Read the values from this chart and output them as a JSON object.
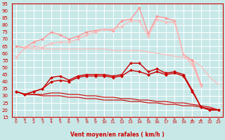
{
  "bg_color": "#c8e8e8",
  "grid_color": "#ffffff",
  "xlabel": "Vent moyen/en rafales ( km/h )",
  "ylabel_ticks": [
    15,
    20,
    25,
    30,
    35,
    40,
    45,
    50,
    55,
    60,
    65,
    70,
    75,
    80,
    85,
    90,
    95
  ],
  "x_ticks": [
    0,
    1,
    2,
    3,
    4,
    5,
    6,
    7,
    8,
    9,
    10,
    11,
    12,
    13,
    14,
    15,
    16,
    17,
    18,
    19,
    20,
    21,
    22,
    23
  ],
  "lines": [
    {
      "color": "#ffbbbb",
      "linewidth": 0.9,
      "marker": null,
      "markersize": 0,
      "y": [
        65,
        64,
        63,
        63,
        63,
        63,
        63,
        63,
        63,
        63,
        63,
        62,
        62,
        62,
        62,
        61,
        60,
        59,
        58,
        57,
        55,
        51,
        43,
        38
      ]
    },
    {
      "color": "#ff9999",
      "linewidth": 1.0,
      "marker": "D",
      "markersize": 2.0,
      "y": [
        65,
        64,
        68,
        70,
        75,
        73,
        70,
        72,
        75,
        76,
        77,
        76,
        83,
        84,
        92,
        74,
        86,
        85,
        83,
        59,
        55,
        38,
        null,
        null
      ]
    },
    {
      "color": "#ffbbbb",
      "linewidth": 1.0,
      "marker": "D",
      "markersize": 2.0,
      "y": [
        57,
        64,
        65,
        64,
        67,
        68,
        68,
        70,
        73,
        75,
        77,
        77,
        79,
        83,
        83,
        72,
        84,
        82,
        82,
        59,
        52,
        37,
        null,
        null
      ]
    },
    {
      "color": "#cc0000",
      "linewidth": 1.0,
      "marker": "D",
      "markersize": 2.0,
      "y": [
        33,
        31,
        33,
        35,
        43,
        44,
        41,
        44,
        45,
        45,
        45,
        44,
        45,
        53,
        53,
        47,
        49,
        46,
        47,
        45,
        34,
        22,
        20,
        20
      ]
    },
    {
      "color": "#cc0000",
      "linewidth": 1.0,
      "marker": "D",
      "markersize": 2.0,
      "y": [
        33,
        31,
        33,
        35,
        40,
        41,
        40,
        43,
        44,
        44,
        44,
        43,
        44,
        48,
        47,
        45,
        47,
        45,
        46,
        44,
        33,
        22,
        20,
        20
      ]
    },
    {
      "color": "#cc0000",
      "linewidth": 0.8,
      "marker": null,
      "markersize": 0,
      "y": [
        33,
        31,
        31,
        31,
        32,
        32,
        31,
        31,
        30,
        30,
        29,
        29,
        28,
        28,
        27,
        27,
        26,
        26,
        25,
        25,
        24,
        23,
        22,
        20
      ]
    },
    {
      "color": "#cc0000",
      "linewidth": 0.8,
      "marker": null,
      "markersize": 0,
      "y": [
        33,
        31,
        31,
        30,
        30,
        30,
        29,
        29,
        28,
        28,
        27,
        27,
        27,
        26,
        26,
        25,
        25,
        24,
        24,
        23,
        23,
        22,
        21,
        20
      ]
    }
  ],
  "ylim": [
    15,
    95
  ],
  "xlim": [
    -0.5,
    23.5
  ],
  "arrow_angles_deg": [
    45,
    45,
    45,
    45,
    45,
    45,
    45,
    45,
    45,
    45,
    45,
    45,
    45,
    45,
    45,
    45,
    45,
    45,
    45,
    45,
    0,
    0,
    45,
    45
  ]
}
